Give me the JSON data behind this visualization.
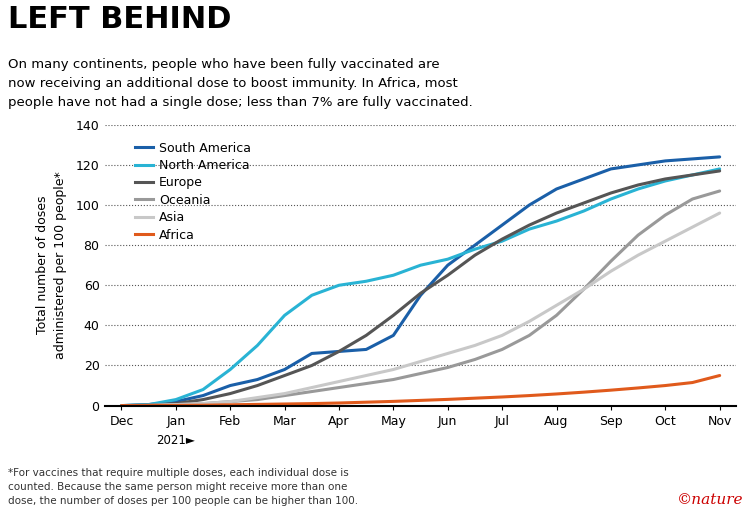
{
  "title": "LEFT BEHIND",
  "subtitle": "On many continents, people who have been fully vaccinated are\nnow receiving an additional dose to boost immunity. In Africa, most\npeople have not had a single dose; less than 7% are fully vaccinated.",
  "footnote": "*For vaccines that require multiple doses, each individual dose is\ncounted. Because the same person might receive more than one\ndose, the number of doses per 100 people can be higher than 100.",
  "ylabel": "Total number of doses\nadministered per 100 people*",
  "xlabel_note": "2021►",
  "ylim": [
    0,
    140
  ],
  "yticks": [
    0,
    20,
    40,
    60,
    80,
    100,
    120,
    140
  ],
  "x_labels": [
    "Dec",
    "Jan",
    "Feb",
    "Mar",
    "Apr",
    "May",
    "Jun",
    "Jul",
    "Aug",
    "Sep",
    "Oct",
    "Nov"
  ],
  "series": {
    "South America": {
      "color": "#1a5fa8",
      "linewidth": 2.2,
      "data": [
        0,
        0.5,
        2,
        5,
        10,
        13,
        18,
        26,
        27,
        28,
        35,
        55,
        70,
        80,
        90,
        100,
        108,
        113,
        118,
        120,
        122,
        123,
        124
      ]
    },
    "North America": {
      "color": "#29b3d4",
      "linewidth": 2.2,
      "data": [
        0,
        0.5,
        3,
        8,
        18,
        30,
        45,
        55,
        60,
        62,
        65,
        70,
        73,
        78,
        82,
        88,
        92,
        97,
        103,
        108,
        112,
        115,
        118
      ]
    },
    "Europe": {
      "color": "#555555",
      "linewidth": 2.2,
      "data": [
        0,
        0.2,
        1,
        3,
        6,
        10,
        15,
        20,
        27,
        35,
        45,
        56,
        65,
        75,
        83,
        90,
        96,
        101,
        106,
        110,
        113,
        115,
        117
      ]
    },
    "Oceania": {
      "color": "#999999",
      "linewidth": 2.2,
      "data": [
        0,
        0.1,
        0.5,
        1,
        2,
        3,
        5,
        7,
        9,
        11,
        13,
        16,
        19,
        23,
        28,
        35,
        45,
        58,
        72,
        85,
        95,
        103,
        107
      ]
    },
    "Asia": {
      "color": "#c8c8c8",
      "linewidth": 2.2,
      "data": [
        0,
        0.1,
        0.5,
        1,
        2,
        4,
        6,
        9,
        12,
        15,
        18,
        22,
        26,
        30,
        35,
        42,
        50,
        58,
        67,
        75,
        82,
        89,
        96
      ]
    },
    "Africa": {
      "color": "#e05a1c",
      "linewidth": 2.2,
      "data": [
        0,
        0,
        0.1,
        0.2,
        0.4,
        0.6,
        0.8,
        1.0,
        1.3,
        1.7,
        2.1,
        2.6,
        3.1,
        3.7,
        4.3,
        5.0,
        5.8,
        6.7,
        7.7,
        8.8,
        10.0,
        11.5,
        15.0
      ]
    }
  },
  "series_order": [
    "South America",
    "North America",
    "Europe",
    "Oceania",
    "Asia",
    "Africa"
  ],
  "background_color": "#ffffff",
  "title_fontsize": 22,
  "subtitle_fontsize": 9.5,
  "axis_fontsize": 9,
  "legend_fontsize": 9,
  "footnote_fontsize": 7.5
}
